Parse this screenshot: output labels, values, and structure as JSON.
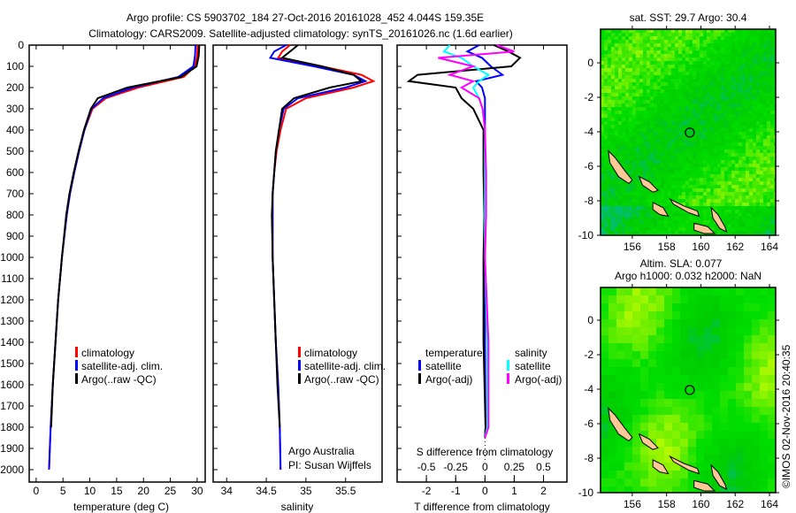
{
  "title_line1": "Argo profile: CS 5903702_184 27-Oct-2016 20161028_452 4.044S 159.35E",
  "title_line2": "Climatology: CARS2009. Satellite-adjusted climatology: synTS_20161026.nc (1.6d earlier)",
  "colors": {
    "climatology": "#ff0000",
    "satellite": "#0000ff",
    "argo": "#000000",
    "sal_satellite": "#00ffff",
    "sal_argo": "#ff00ff"
  },
  "chart_data": [
    {
      "type": "line",
      "name": "temperature profile",
      "xlabel": "temperature (deg C)",
      "ylabel": "",
      "xlim": [
        -1.3,
        31.5
      ],
      "ylim": [
        2000,
        0
      ],
      "xticks": [
        0,
        5,
        10,
        15,
        20,
        25,
        30
      ],
      "yticks": [
        0,
        100,
        200,
        300,
        400,
        500,
        600,
        700,
        800,
        900,
        1000,
        1100,
        1200,
        1300,
        1400,
        1500,
        1600,
        1700,
        1800,
        1900,
        2000
      ],
      "legend": [
        "climatology",
        "satellite-adj. clim.",
        "Argo(..raw -QC)"
      ],
      "depth": [
        0,
        50,
        100,
        150,
        200,
        250,
        300,
        400,
        500,
        600,
        700,
        800,
        1000,
        1200,
        1400,
        1600,
        1800,
        2000
      ],
      "series": [
        {
          "name": "climatology",
          "values": [
            30.1,
            30.0,
            29.6,
            27.5,
            19,
            13,
            10.5,
            9.0,
            8.0,
            7.1,
            6.3,
            5.7,
            4.8,
            4.1,
            3.6,
            3.1,
            2.7,
            2.4
          ]
        },
        {
          "name": "satellite-adj. clim.",
          "values": [
            29.7,
            29.6,
            29.3,
            26.5,
            18,
            12.5,
            10.3,
            9.0,
            8.0,
            7.1,
            6.3,
            5.7,
            4.8,
            4.1,
            3.6,
            3.1,
            2.7,
            2.4
          ]
        },
        {
          "name": "Argo(..raw -QC)",
          "values": [
            30.4,
            30.3,
            29.9,
            27,
            17,
            11.5,
            10.2,
            8.9,
            7.9,
            7.0,
            6.2,
            5.6,
            4.8,
            4.1,
            3.6,
            3.1,
            2.8
          ]
        }
      ]
    },
    {
      "type": "line",
      "name": "salinity profile",
      "xlabel": "salinity",
      "xlim": [
        33.83,
        35.96
      ],
      "ylim": [
        2000,
        0
      ],
      "xticks": [
        34,
        34.5,
        35,
        35.5
      ],
      "legend": [
        "climatology",
        "satellite-adj. clim.",
        "Argo(..raw -QC)"
      ],
      "annotation": [
        "Argo Australia",
        "PI: Susan Wijffels"
      ],
      "depth": [
        0,
        30,
        60,
        100,
        140,
        170,
        200,
        250,
        300,
        400,
        500,
        600,
        700,
        800,
        1000,
        1200,
        1400,
        1600,
        1800,
        2000
      ],
      "series": [
        {
          "name": "climatology",
          "values": [
            34.8,
            34.7,
            34.65,
            35.2,
            35.7,
            35.85,
            35.6,
            35.0,
            34.75,
            34.68,
            34.63,
            34.6,
            34.58,
            34.58,
            34.58,
            34.6,
            34.62,
            34.65,
            34.67,
            34.68
          ]
        },
        {
          "name": "satellite-adj. clim.",
          "values": [
            34.75,
            34.6,
            34.55,
            35.1,
            35.6,
            35.75,
            35.5,
            34.9,
            34.72,
            34.66,
            34.62,
            34.6,
            34.58,
            34.58,
            34.58,
            34.6,
            34.62,
            34.65,
            34.67,
            34.68
          ]
        },
        {
          "name": "Argo(..raw -QC)",
          "values": [
            34.9,
            34.8,
            34.7,
            35.2,
            35.6,
            35.7,
            35.3,
            34.85,
            34.7,
            34.66,
            34.62,
            34.6,
            34.58,
            34.57,
            34.58,
            34.6,
            34.62,
            34.64,
            34.67
          ]
        }
      ]
    },
    {
      "type": "line",
      "name": "difference from climatology",
      "xlabel": "T difference from climatology",
      "xlabel_top": "S difference from climatology",
      "xlim": [
        -3,
        2.8
      ],
      "ylim": [
        2000,
        0
      ],
      "xticks": [
        -2,
        -1,
        0,
        1,
        2
      ],
      "xticks_S": [
        -0.5,
        -0.25,
        0,
        0.25,
        0.5
      ],
      "legend_T_title": "temperature",
      "legend_S_title": "salinity",
      "legend": [
        "satellite",
        "Argo(-adj)",
        "satellite",
        "Argo(-adj)"
      ],
      "depth": [
        0,
        30,
        60,
        100,
        140,
        170,
        200,
        250,
        300,
        400,
        600,
        800,
        1000,
        1400,
        1800,
        1850
      ],
      "series": [
        {
          "name": "T satellite",
          "values": [
            -0.2,
            -0.6,
            -0.1,
            0.2,
            0.6,
            -0.3,
            -0.1,
            0,
            0,
            0,
            0,
            0,
            0,
            0,
            0.02,
            0
          ]
        },
        {
          "name": "T Argo(-adj)",
          "values": [
            0.3,
            0.8,
            1.2,
            0.9,
            -2.3,
            -2.6,
            -1.0,
            -0.8,
            -0.4,
            -0.05,
            -0.05,
            -0.02,
            -0.05,
            -0.05,
            0.02,
            0
          ]
        },
        {
          "name": "S satellite",
          "values": [
            -0.3,
            -0.35,
            -0.2,
            -0.1,
            0.03,
            -0.05,
            -0.1,
            -0.05,
            -0.02,
            0,
            0,
            0,
            0,
            0.02,
            0.02,
            0
          ]
        },
        {
          "name": "S Argo(-adj)",
          "values": [
            0.1,
            0.25,
            -0.4,
            -0.1,
            -0.3,
            -0.1,
            -0.2,
            -0.05,
            -0.02,
            0,
            0.01,
            0.01,
            0,
            0.03,
            0.03,
            0
          ]
        }
      ]
    },
    {
      "type": "heatmap",
      "name": "SST map",
      "title": "sat. SST: 29.7 Argo: 30.4",
      "xlim": [
        154.15,
        164.36
      ],
      "ylim": [
        -10,
        1.95
      ],
      "xticks": [
        156,
        158,
        160,
        162,
        164
      ],
      "yticks": [
        0,
        -2,
        -4,
        -6,
        -8,
        -10
      ],
      "float_position": [
        159.35,
        -4.044
      ]
    },
    {
      "type": "heatmap",
      "name": "SLA map",
      "title_line1": "Altim. SLA: 0.077",
      "title_line2": "Argo h1000: 0.032 h2000: NaN",
      "xlim": [
        154.15,
        164.36
      ],
      "ylim": [
        -10,
        1.9
      ],
      "xticks": [
        156,
        158,
        160,
        162,
        164
      ],
      "yticks": [
        0,
        -2,
        -4,
        -6,
        -8,
        -10
      ],
      "float_position": [
        159.35,
        -4.044
      ]
    }
  ],
  "copyright": "©IMOS 02-Nov-2016 20:40:35"
}
